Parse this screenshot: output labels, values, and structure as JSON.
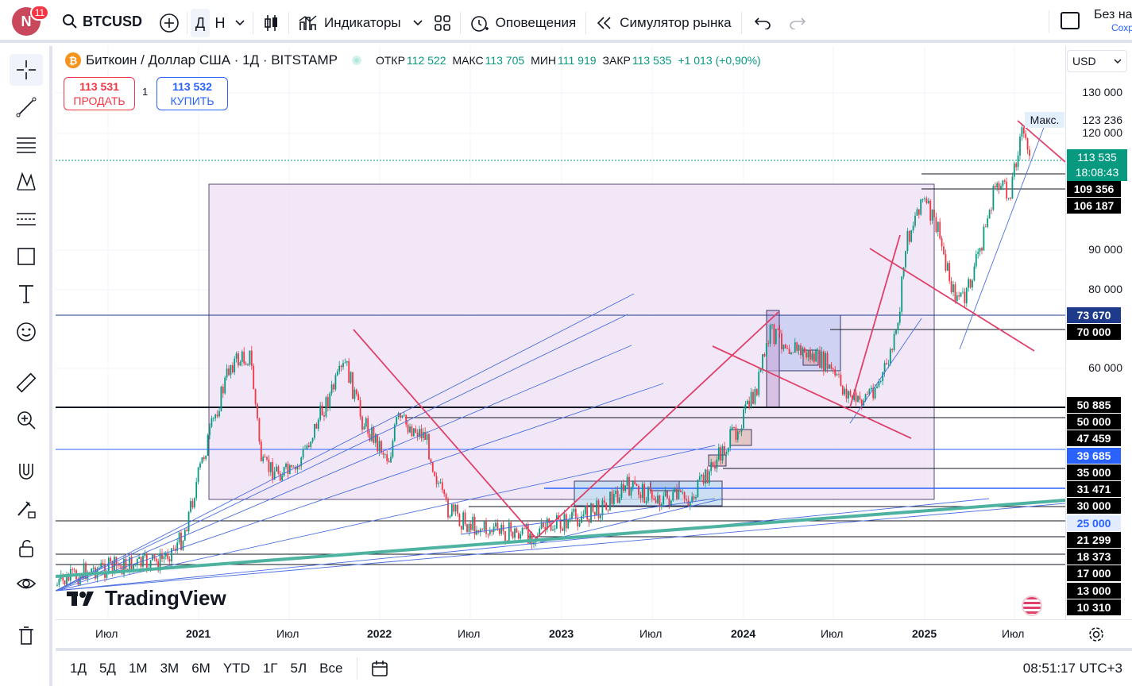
{
  "topbar": {
    "avatar_letter": "N",
    "notifications": "11",
    "symbol": "BTCUSD",
    "res_day": "Д",
    "res_week": "Н",
    "indicators": "Индикаторы",
    "alerts": "Оповещения",
    "replay": "Симулятор рынка",
    "unnamed_top": "Без на",
    "unnamed_bottom": "Сохр"
  },
  "legend": {
    "coin": "₿",
    "title": "Биткоин / Доллар США · 1Д · BITSTAMP",
    "open_label": "ОТКР",
    "open": "112 522",
    "high_label": "МАКС",
    "high": "113 705",
    "low_label": "МИН",
    "low": "111 919",
    "close_label": "ЗАКР",
    "close": "113 535",
    "change": "+1 013 (+0,90%)"
  },
  "trade": {
    "sell_price": "113 531",
    "sell_label": "ПРОДАТЬ",
    "qty": "1",
    "buy_price": "113 532",
    "buy_label": "КУПИТЬ"
  },
  "price_axis": {
    "currency": "USD",
    "ticks": [
      "130 000",
      "120 000",
      "90 000",
      "80 000",
      "60 000"
    ],
    "max_label": "Макс.",
    "max_value": "123 236",
    "last_price": "113 535",
    "countdown": "18:08:43",
    "levels": [
      "109 356",
      "106 187",
      "73 670",
      "70 000",
      "50 885",
      "50 000",
      "47 459",
      "39 685",
      "35 000",
      "31 471",
      "30 000",
      "25 000",
      "21 299",
      "18 373",
      "17 000",
      "13 000",
      "10 310"
    ]
  },
  "time_axis": {
    "labels": [
      "Июл",
      "2021",
      "Июл",
      "2022",
      "Июл",
      "2023",
      "Июл",
      "2024",
      "Июл",
      "2025",
      "Июл"
    ]
  },
  "bottombar": {
    "ranges": [
      "1Д",
      "5Д",
      "1М",
      "3М",
      "6М",
      "YTD",
      "1Г",
      "5Л",
      "Все"
    ],
    "clock": "08:51:17 UTC+3"
  },
  "watermark": "TradingView",
  "colors": {
    "up": "#089981",
    "down": "#f23645",
    "accent": "#2962ff",
    "zone": "#ede1f4",
    "trendline_red": "#e0416a",
    "fan_blue": "#4a6ee0",
    "thick_green": "#4db3a0"
  }
}
